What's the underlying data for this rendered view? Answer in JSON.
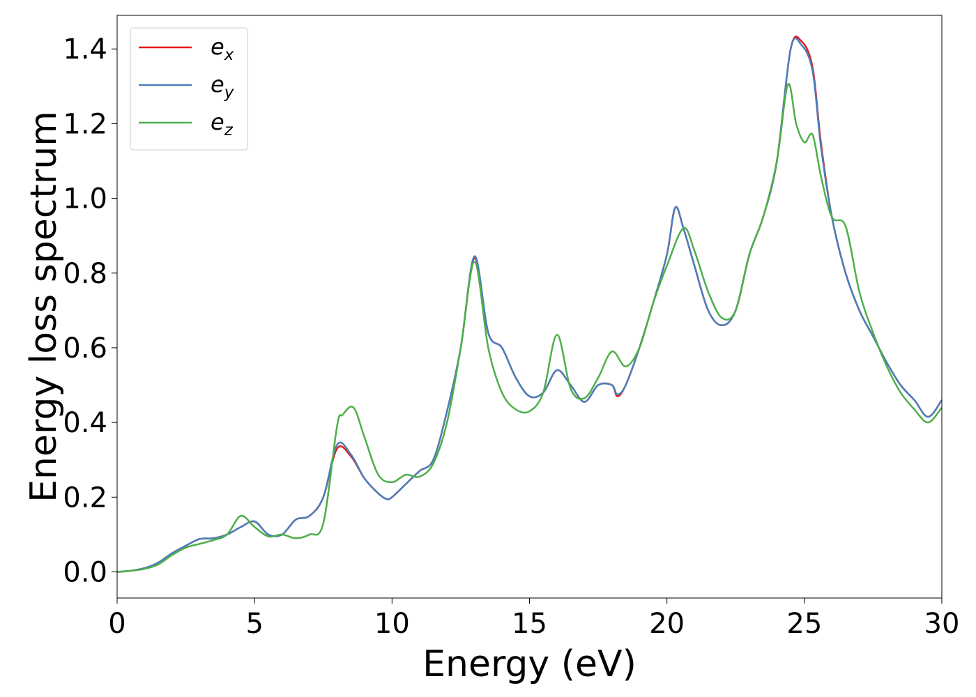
{
  "chart_data": {
    "type": "line",
    "title": "",
    "xlabel": "Energy (eV)",
    "ylabel": "Energy loss spectrum",
    "xlim": [
      0,
      30
    ],
    "ylim": [
      -0.07,
      1.49
    ],
    "xticks": [
      0,
      5,
      10,
      15,
      20,
      25,
      30
    ],
    "xtick_labels": [
      "0",
      "5",
      "10",
      "15",
      "20",
      "25",
      "30"
    ],
    "yticks": [
      0.0,
      0.2,
      0.4,
      0.6,
      0.8,
      1.0,
      1.2,
      1.4
    ],
    "ytick_labels": [
      "0.0",
      "0.2",
      "0.4",
      "0.6",
      "0.8",
      "1.0",
      "1.2",
      "1.4"
    ],
    "grid": false,
    "legend_position": "top-left",
    "series": [
      {
        "name": "e_x",
        "legend_base": "e",
        "legend_sub": "x",
        "color": "#e41a1c",
        "points": [
          [
            0,
            0
          ],
          [
            0.5,
            0.003
          ],
          [
            1,
            0.01
          ],
          [
            1.5,
            0.025
          ],
          [
            2,
            0.05
          ],
          [
            2.5,
            0.07
          ],
          [
            3,
            0.088
          ],
          [
            3.5,
            0.09
          ],
          [
            4,
            0.1
          ],
          [
            4.5,
            0.12
          ],
          [
            5,
            0.135
          ],
          [
            5.5,
            0.1
          ],
          [
            6,
            0.1
          ],
          [
            6.5,
            0.14
          ],
          [
            7,
            0.15
          ],
          [
            7.5,
            0.2
          ],
          [
            8,
            0.33
          ],
          [
            8.5,
            0.31
          ],
          [
            9,
            0.25
          ],
          [
            9.5,
            0.21
          ],
          [
            9.8,
            0.195
          ],
          [
            10,
            0.2
          ],
          [
            10.5,
            0.235
          ],
          [
            11,
            0.27
          ],
          [
            11.5,
            0.3
          ],
          [
            12,
            0.43
          ],
          [
            12.5,
            0.6
          ],
          [
            13,
            0.84
          ],
          [
            13.5,
            0.64
          ],
          [
            14,
            0.6
          ],
          [
            14.5,
            0.52
          ],
          [
            15,
            0.47
          ],
          [
            15.5,
            0.48
          ],
          [
            16,
            0.54
          ],
          [
            16.5,
            0.5
          ],
          [
            17,
            0.455
          ],
          [
            17.5,
            0.5
          ],
          [
            18,
            0.5
          ],
          [
            18.2,
            0.47
          ],
          [
            18.5,
            0.5
          ],
          [
            19,
            0.6
          ],
          [
            19.5,
            0.72
          ],
          [
            20,
            0.85
          ],
          [
            20.3,
            0.975
          ],
          [
            20.6,
            0.92
          ],
          [
            21,
            0.82
          ],
          [
            21.5,
            0.7
          ],
          [
            22,
            0.66
          ],
          [
            22.5,
            0.7
          ],
          [
            23,
            0.85
          ],
          [
            23.5,
            0.95
          ],
          [
            24,
            1.1
          ],
          [
            24.5,
            1.4
          ],
          [
            24.9,
            1.42
          ],
          [
            25.3,
            1.35
          ],
          [
            25.6,
            1.15
          ],
          [
            26,
            0.95
          ],
          [
            26.5,
            0.8
          ],
          [
            27,
            0.7
          ],
          [
            27.5,
            0.63
          ],
          [
            28,
            0.56
          ],
          [
            28.5,
            0.5
          ],
          [
            29,
            0.46
          ],
          [
            29.5,
            0.415
          ],
          [
            30,
            0.46
          ]
        ]
      },
      {
        "name": "e_y",
        "legend_base": "e",
        "legend_sub": "y",
        "color": "#4a7ebb",
        "points": [
          [
            0,
            0
          ],
          [
            0.5,
            0.003
          ],
          [
            1,
            0.01
          ],
          [
            1.5,
            0.025
          ],
          [
            2,
            0.05
          ],
          [
            2.5,
            0.07
          ],
          [
            3,
            0.088
          ],
          [
            3.5,
            0.09
          ],
          [
            4,
            0.1
          ],
          [
            4.5,
            0.12
          ],
          [
            5,
            0.135
          ],
          [
            5.5,
            0.1
          ],
          [
            6,
            0.1
          ],
          [
            6.5,
            0.14
          ],
          [
            7,
            0.15
          ],
          [
            7.5,
            0.2
          ],
          [
            8,
            0.34
          ],
          [
            8.5,
            0.315
          ],
          [
            9,
            0.25
          ],
          [
            9.5,
            0.21
          ],
          [
            9.8,
            0.195
          ],
          [
            10,
            0.2
          ],
          [
            10.5,
            0.235
          ],
          [
            11,
            0.27
          ],
          [
            11.5,
            0.3
          ],
          [
            12,
            0.43
          ],
          [
            12.5,
            0.6
          ],
          [
            13,
            0.845
          ],
          [
            13.5,
            0.64
          ],
          [
            14,
            0.6
          ],
          [
            14.5,
            0.52
          ],
          [
            15,
            0.47
          ],
          [
            15.5,
            0.48
          ],
          [
            16,
            0.54
          ],
          [
            16.5,
            0.5
          ],
          [
            17,
            0.455
          ],
          [
            17.5,
            0.5
          ],
          [
            18,
            0.5
          ],
          [
            18.2,
            0.475
          ],
          [
            18.5,
            0.5
          ],
          [
            19,
            0.6
          ],
          [
            19.5,
            0.72
          ],
          [
            20,
            0.85
          ],
          [
            20.3,
            0.975
          ],
          [
            20.6,
            0.92
          ],
          [
            21,
            0.82
          ],
          [
            21.5,
            0.7
          ],
          [
            22,
            0.66
          ],
          [
            22.5,
            0.7
          ],
          [
            23,
            0.85
          ],
          [
            23.5,
            0.95
          ],
          [
            24,
            1.1
          ],
          [
            24.5,
            1.4
          ],
          [
            24.9,
            1.41
          ],
          [
            25.3,
            1.34
          ],
          [
            25.6,
            1.14
          ],
          [
            26,
            0.95
          ],
          [
            26.5,
            0.8
          ],
          [
            27,
            0.7
          ],
          [
            27.5,
            0.63
          ],
          [
            28,
            0.56
          ],
          [
            28.5,
            0.5
          ],
          [
            29,
            0.46
          ],
          [
            29.5,
            0.415
          ],
          [
            30,
            0.46
          ]
        ]
      },
      {
        "name": "e_z",
        "legend_base": "e",
        "legend_sub": "z",
        "color": "#4daf4a",
        "points": [
          [
            0,
            0
          ],
          [
            0.5,
            0.003
          ],
          [
            1,
            0.008
          ],
          [
            1.5,
            0.02
          ],
          [
            2,
            0.045
          ],
          [
            2.5,
            0.065
          ],
          [
            3,
            0.075
          ],
          [
            3.5,
            0.085
          ],
          [
            4,
            0.1
          ],
          [
            4.5,
            0.15
          ],
          [
            5,
            0.12
          ],
          [
            5.5,
            0.095
          ],
          [
            6,
            0.1
          ],
          [
            6.5,
            0.09
          ],
          [
            7,
            0.1
          ],
          [
            7.5,
            0.13
          ],
          [
            8,
            0.39
          ],
          [
            8.2,
            0.42
          ],
          [
            8.6,
            0.44
          ],
          [
            9,
            0.36
          ],
          [
            9.5,
            0.26
          ],
          [
            10,
            0.24
          ],
          [
            10.5,
            0.26
          ],
          [
            11,
            0.255
          ],
          [
            11.5,
            0.29
          ],
          [
            12,
            0.4
          ],
          [
            12.5,
            0.6
          ],
          [
            13,
            0.83
          ],
          [
            13.5,
            0.6
          ],
          [
            14,
            0.48
          ],
          [
            14.5,
            0.435
          ],
          [
            15,
            0.43
          ],
          [
            15.5,
            0.48
          ],
          [
            16,
            0.635
          ],
          [
            16.5,
            0.49
          ],
          [
            17,
            0.465
          ],
          [
            17.5,
            0.52
          ],
          [
            18,
            0.59
          ],
          [
            18.5,
            0.55
          ],
          [
            19,
            0.6
          ],
          [
            19.5,
            0.72
          ],
          [
            20,
            0.82
          ],
          [
            20.6,
            0.92
          ],
          [
            21,
            0.86
          ],
          [
            21.5,
            0.75
          ],
          [
            22,
            0.68
          ],
          [
            22.5,
            0.7
          ],
          [
            23,
            0.85
          ],
          [
            23.5,
            0.95
          ],
          [
            24,
            1.1
          ],
          [
            24.4,
            1.305
          ],
          [
            24.7,
            1.2
          ],
          [
            25,
            1.15
          ],
          [
            25.3,
            1.17
          ],
          [
            25.6,
            1.06
          ],
          [
            26,
            0.95
          ],
          [
            26.5,
            0.925
          ],
          [
            27,
            0.75
          ],
          [
            27.5,
            0.64
          ],
          [
            28,
            0.55
          ],
          [
            28.5,
            0.48
          ],
          [
            29,
            0.435
          ],
          [
            29.5,
            0.4
          ],
          [
            30,
            0.44
          ]
        ]
      }
    ]
  }
}
